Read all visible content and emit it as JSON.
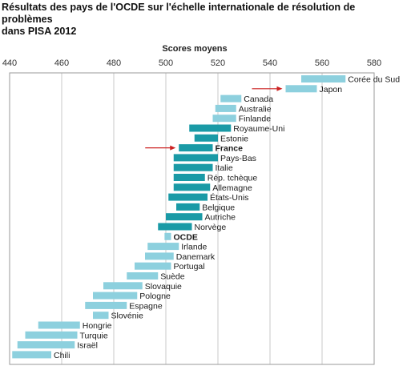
{
  "chart_data": {
    "type": "bar",
    "orientation": "horizontal-range",
    "title_lines": [
      "Résultats des pays de l'OCDE sur l'échelle internationale de résolution de problèmes",
      "dans PISA 2012"
    ],
    "xlabel": "Scores moyens",
    "xlim": [
      440,
      580
    ],
    "xticks": [
      440,
      460,
      480,
      500,
      520,
      540,
      560,
      580
    ],
    "grid": true,
    "highlight_color": "#1a9aa6",
    "normal_color": "#8dd0de",
    "arrow_color": "#cc2222",
    "countries": [
      {
        "label": "Corée du Sud",
        "low": 552,
        "high": 569,
        "dark": false,
        "bold": false
      },
      {
        "label": "Japon",
        "low": 546,
        "high": 558,
        "dark": false,
        "bold": false,
        "arrow": true
      },
      {
        "label": "Canada",
        "low": 521,
        "high": 529,
        "dark": false,
        "bold": false
      },
      {
        "label": "Australie",
        "low": 519,
        "high": 527,
        "dark": false,
        "bold": false
      },
      {
        "label": "Finlande",
        "low": 518,
        "high": 527,
        "dark": false,
        "bold": false
      },
      {
        "label": "Royaume-Uni",
        "low": 509,
        "high": 525,
        "dark": true,
        "bold": false
      },
      {
        "label": "Estonie",
        "low": 511,
        "high": 520,
        "dark": true,
        "bold": false
      },
      {
        "label": "France",
        "low": 505,
        "high": 518,
        "dark": true,
        "bold": true,
        "arrow": true
      },
      {
        "label": "Pays-Bas",
        "low": 503,
        "high": 520,
        "dark": true,
        "bold": false
      },
      {
        "label": "Italie",
        "low": 503,
        "high": 518,
        "dark": true,
        "bold": false
      },
      {
        "label": "Rép. tchèque",
        "low": 503,
        "high": 515,
        "dark": true,
        "bold": false
      },
      {
        "label": "Allemagne",
        "low": 503,
        "high": 517,
        "dark": true,
        "bold": false
      },
      {
        "label": "États-Unis",
        "low": 501,
        "high": 516,
        "dark": true,
        "bold": false
      },
      {
        "label": "Belgique",
        "low": 504,
        "high": 513,
        "dark": true,
        "bold": false
      },
      {
        "label": "Autriche",
        "low": 500,
        "high": 514,
        "dark": true,
        "bold": false
      },
      {
        "label": "Norvège",
        "low": 497,
        "high": 510,
        "dark": true,
        "bold": false
      },
      {
        "label": "OCDE",
        "low": 499.5,
        "high": 502,
        "dark": false,
        "bold": true
      },
      {
        "label": "Irlande",
        "low": 493,
        "high": 505,
        "dark": false,
        "bold": false
      },
      {
        "label": "Danemark",
        "low": 492,
        "high": 503,
        "dark": false,
        "bold": false
      },
      {
        "label": "Portugal",
        "low": 488,
        "high": 502,
        "dark": false,
        "bold": false
      },
      {
        "label": "Suède",
        "low": 485,
        "high": 497,
        "dark": false,
        "bold": false
      },
      {
        "label": "Slovaquie",
        "low": 476,
        "high": 491,
        "dark": false,
        "bold": false
      },
      {
        "label": "Pologne",
        "low": 472,
        "high": 489,
        "dark": false,
        "bold": false
      },
      {
        "label": "Espagne",
        "low": 469,
        "high": 485,
        "dark": false,
        "bold": false
      },
      {
        "label": "Slovénie",
        "low": 472,
        "high": 478,
        "dark": false,
        "bold": false
      },
      {
        "label": "Hongrie",
        "low": 451,
        "high": 467,
        "dark": false,
        "bold": false
      },
      {
        "label": "Turquie",
        "low": 446,
        "high": 466,
        "dark": false,
        "bold": false
      },
      {
        "label": "Israël",
        "low": 443,
        "high": 465,
        "dark": false,
        "bold": false
      },
      {
        "label": "Chili",
        "low": 441,
        "high": 456,
        "dark": false,
        "bold": false
      }
    ]
  }
}
